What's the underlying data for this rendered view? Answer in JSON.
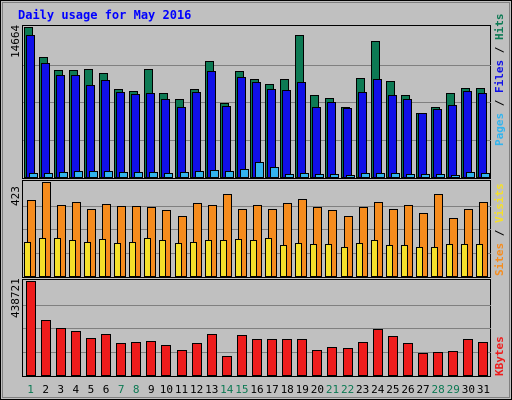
{
  "chart_data": {
    "type": "bar",
    "title": "Daily usage for May 2016",
    "categories": [
      "1",
      "2",
      "3",
      "4",
      "5",
      "6",
      "7",
      "8",
      "9",
      "10",
      "11",
      "12",
      "13",
      "14",
      "15",
      "16",
      "17",
      "18",
      "19",
      "20",
      "21",
      "22",
      "23",
      "24",
      "25",
      "26",
      "27",
      "28",
      "29",
      "30",
      "31"
    ],
    "weekend_days": [
      "1",
      "7",
      "8",
      "14",
      "15",
      "21",
      "22",
      "28",
      "29"
    ],
    "panels": [
      {
        "id": "pages_files_hits",
        "max_label": "14664",
        "ymax": 14664,
        "legend": [
          "Pages",
          "/",
          "Files",
          "/",
          "Hits"
        ],
        "series": [
          {
            "name": "Hits",
            "color": "#0d7a54",
            "values": [
              14664,
              11700,
              10500,
              10500,
              10600,
              10200,
              8600,
              8400,
              10600,
              8200,
              7600,
              8600,
              11300,
              7200,
              10400,
              9600,
              9100,
              9600,
              13900,
              8000,
              7700,
              6800,
              9700,
              13300,
              9400,
              8000,
              6300,
              6800,
              8200,
              8700,
              8700
            ]
          },
          {
            "name": "Files",
            "color": "#1010e8",
            "values": [
              13900,
              11100,
              10000,
              10000,
              9000,
              9500,
              8300,
              8100,
              8200,
              7600,
              6800,
              8300,
              10400,
              6900,
              9800,
              9300,
              8600,
              8500,
              9300,
              6800,
              7300,
              6700,
              8300,
              9600,
              8000,
              7600,
              6300,
              6600,
              7000,
              8400,
              8200
            ]
          },
          {
            "name": "Pages",
            "color": "#32b4ee",
            "values": [
              350,
              400,
              500,
              550,
              600,
              550,
              500,
              450,
              500,
              400,
              450,
              550,
              700,
              600,
              800,
              1450,
              1000,
              300,
              350,
              250,
              250,
              200,
              400,
              400,
              350,
              300,
              250,
              250,
              200,
              450,
              400
            ]
          }
        ]
      },
      {
        "id": "sites_visits",
        "max_label": "423",
        "ymax": 423,
        "legend": [
          "Sites",
          "/",
          "Visits"
        ],
        "series": [
          {
            "name": "Visits",
            "color": "#f58c1e",
            "values": [
              342,
              423,
              320,
              335,
              300,
              325,
              315,
              315,
              310,
              295,
              270,
              330,
              320,
              370,
              300,
              320,
              300,
              330,
              345,
              310,
              295,
              270,
              310,
              335,
              300,
              320,
              285,
              370,
              260,
              300,
              335
            ]
          },
          {
            "name": "Sites",
            "color": "#f5e02a",
            "values": [
              155,
              170,
              170,
              160,
              155,
              165,
              150,
              155,
              170,
              160,
              150,
              155,
              160,
              160,
              165,
              160,
              170,
              140,
              150,
              145,
              145,
              130,
              150,
              160,
              140,
              140,
              130,
              130,
              145,
              145,
              145
            ]
          }
        ]
      },
      {
        "id": "kbytes",
        "max_label": "438721",
        "ymax": 438721,
        "legend": [
          "KBytes"
        ],
        "series": [
          {
            "name": "KBytes",
            "color": "#ee1c1c",
            "values": [
              438721,
              255000,
              220000,
              205000,
              175000,
              190000,
              150000,
              152000,
              160000,
              140000,
              115000,
              150000,
              190000,
              90000,
              185000,
              170000,
              170000,
              168000,
              170000,
              115000,
              130000,
              125000,
              155000,
              215000,
              182000,
              148000,
              105000,
              108000,
              112000,
              170000,
              155000
            ]
          }
        ]
      }
    ]
  }
}
